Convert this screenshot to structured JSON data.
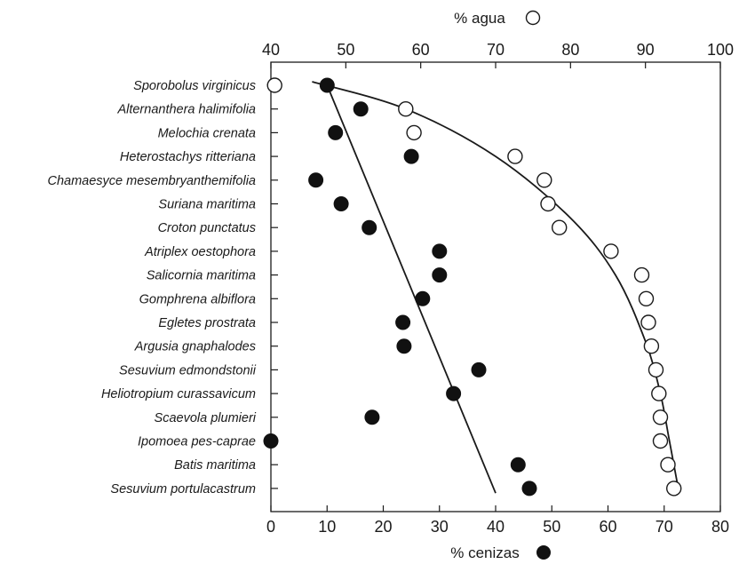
{
  "chart_data": {
    "type": "scatter",
    "categories": [
      "Sporobolus virginicus",
      "Alternanthera halimifolia",
      "Melochia crenata",
      "Heterostachys ritteriana",
      "Chamaesyce mesembryanthemifolia",
      "Suriana maritima",
      "Croton punctatus",
      "Atriplex oestophora",
      "Salicornia maritima",
      "Gomphrena albiflora",
      "Egletes prostrata",
      "Argusia gnaphalodes",
      "Sesuvium edmondstonii",
      "Heliotropium curassavicum",
      "Scaevola plumieri",
      "Ipomoea pes-caprae",
      "Batis maritima",
      "Sesuvium portulacastrum"
    ],
    "top_axis": {
      "label": "% agua",
      "range": [
        40,
        100
      ],
      "ticks": [
        40,
        50,
        60,
        70,
        80,
        90,
        100
      ]
    },
    "bottom_axis": {
      "label": "% cenizas",
      "range": [
        0,
        80
      ],
      "ticks": [
        0,
        10,
        20,
        30,
        40,
        50,
        60,
        70,
        80
      ]
    },
    "series": [
      {
        "name": "% agua",
        "axis": "top",
        "marker": "open-circle",
        "values": [
          40.5,
          58.0,
          59.1,
          72.6,
          76.5,
          77.0,
          78.5,
          85.4,
          89.5,
          90.1,
          90.4,
          90.8,
          91.4,
          91.8,
          92.0,
          92.0,
          93.0,
          93.8
        ]
      },
      {
        "name": "% cenizas",
        "axis": "bottom",
        "marker": "filled-circle",
        "values": [
          10.0,
          16.0,
          11.5,
          25.0,
          8.0,
          12.5,
          17.5,
          30.0,
          30.0,
          27.0,
          23.5,
          23.7,
          37.0,
          32.5,
          18.0,
          0,
          44.0,
          46.0
        ]
      }
    ],
    "fit_lines": [
      {
        "series": "% agua",
        "axis": "top",
        "shape": "curve",
        "points": [
          [
            45.5,
            -0.15
          ],
          [
            58.0,
            1.0
          ],
          [
            70.0,
            3.0
          ],
          [
            80.0,
            5.6
          ],
          [
            86.0,
            8.0
          ],
          [
            90.0,
            10.8
          ],
          [
            92.0,
            13.0
          ],
          [
            93.2,
            15.0
          ],
          [
            94.5,
            17.2
          ]
        ]
      },
      {
        "series": "% cenizas",
        "axis": "bottom",
        "shape": "line",
        "points": [
          [
            10.0,
            0
          ],
          [
            40.0,
            17.2
          ]
        ]
      }
    ],
    "grid": false,
    "legend": "marker symbols beside axis titles"
  }
}
